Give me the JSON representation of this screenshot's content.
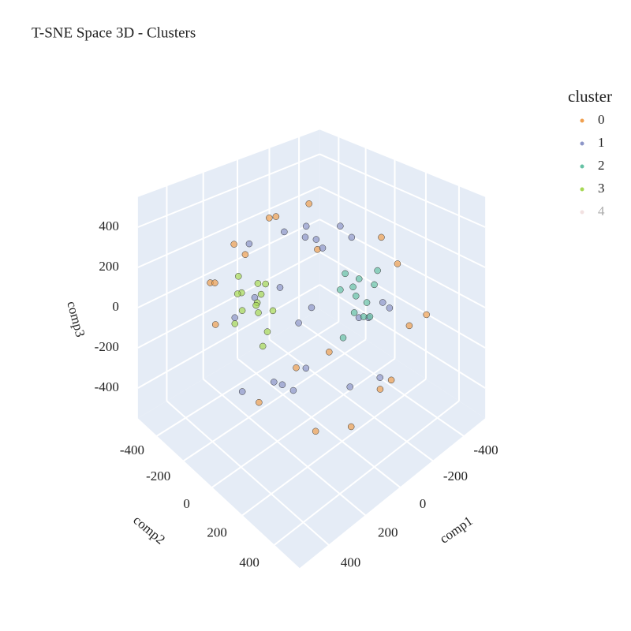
{
  "chart_data": {
    "type": "scatter3d",
    "title": "T-SNE Space 3D - Clusters",
    "legend_title": "cluster",
    "legend_position": "right",
    "x_label": "comp1",
    "y_label": "comp2",
    "z_label": "comp3",
    "xlim": [
      -550,
      550
    ],
    "ylim": [
      -550,
      550
    ],
    "zlim": [
      -550,
      550
    ],
    "xticks": [
      -400,
      -200,
      0,
      200,
      400
    ],
    "yticks": [
      -400,
      -200,
      0,
      200,
      400
    ],
    "zticks": [
      -400,
      -200,
      0,
      200,
      400
    ],
    "grid": true,
    "series": [
      {
        "name": "0",
        "color": "#f0a050",
        "x": [
          -350,
          300,
          120,
          -80,
          380,
          -250,
          200,
          -400,
          50,
          420,
          -150,
          280,
          -320,
          100,
          350,
          -30,
          -200,
          250,
          0,
          -380
        ],
        "y": [
          200,
          -350,
          380,
          -400,
          100,
          -300,
          250,
          50,
          -420,
          -150,
          350,
          -200,
          300,
          150,
          300,
          400,
          -100,
          -380,
          -250,
          350
        ],
        "z": [
          150,
          100,
          -300,
          250,
          -200,
          300,
          -350,
          200,
          100,
          250,
          -250,
          350,
          -100,
          400,
          50,
          -200,
          -380,
          -150,
          350,
          -50
        ]
      },
      {
        "name": "1",
        "color": "#8d96c8",
        "x": [
          0,
          100,
          -150,
          250,
          -300,
          50,
          -50,
          200,
          -200,
          150,
          -100,
          300,
          -250,
          350,
          -350,
          80,
          -80,
          180,
          -180,
          20,
          280,
          -280,
          120,
          -120
        ],
        "y": [
          0,
          -100,
          150,
          200,
          -50,
          300,
          -250,
          -300,
          250,
          50,
          -150,
          100,
          -200,
          -50,
          150,
          -350,
          350,
          -180,
          180,
          -20,
          280,
          -280,
          -60,
          60
        ],
        "z": [
          0,
          100,
          -50,
          150,
          200,
          -200,
          250,
          -100,
          50,
          -300,
          300,
          -150,
          100,
          -250,
          -100,
          200,
          -200,
          50,
          -50,
          350,
          0,
          100,
          -350,
          380
        ]
      },
      {
        "name": "2",
        "color": "#66c2a5",
        "x": [
          -200,
          -250,
          -150,
          -300,
          -180,
          -220,
          -120,
          -260,
          -170,
          -240,
          -100,
          -280
        ],
        "y": [
          80,
          50,
          120,
          100,
          30,
          150,
          60,
          0,
          180,
          90,
          100,
          140
        ],
        "z": [
          0,
          50,
          -40,
          20,
          100,
          -80,
          60,
          -20,
          30,
          -120,
          -150,
          120
        ]
      },
      {
        "name": "3",
        "color": "#a6d854",
        "x": [
          150,
          200,
          100,
          250,
          180,
          120,
          220,
          80,
          170,
          140,
          260,
          200,
          110,
          190
        ],
        "y": [
          -200,
          -250,
          -150,
          -180,
          -300,
          -230,
          -120,
          -260,
          -170,
          -140,
          -220,
          -280,
          -190,
          -110
        ],
        "z": [
          0,
          50,
          -40,
          20,
          100,
          -80,
          60,
          -20,
          120,
          -120,
          -60,
          30,
          80,
          -150
        ]
      },
      {
        "name": "4",
        "color": "#e5c4c4",
        "visible": "legendonly",
        "x": [],
        "y": [],
        "z": []
      }
    ]
  }
}
